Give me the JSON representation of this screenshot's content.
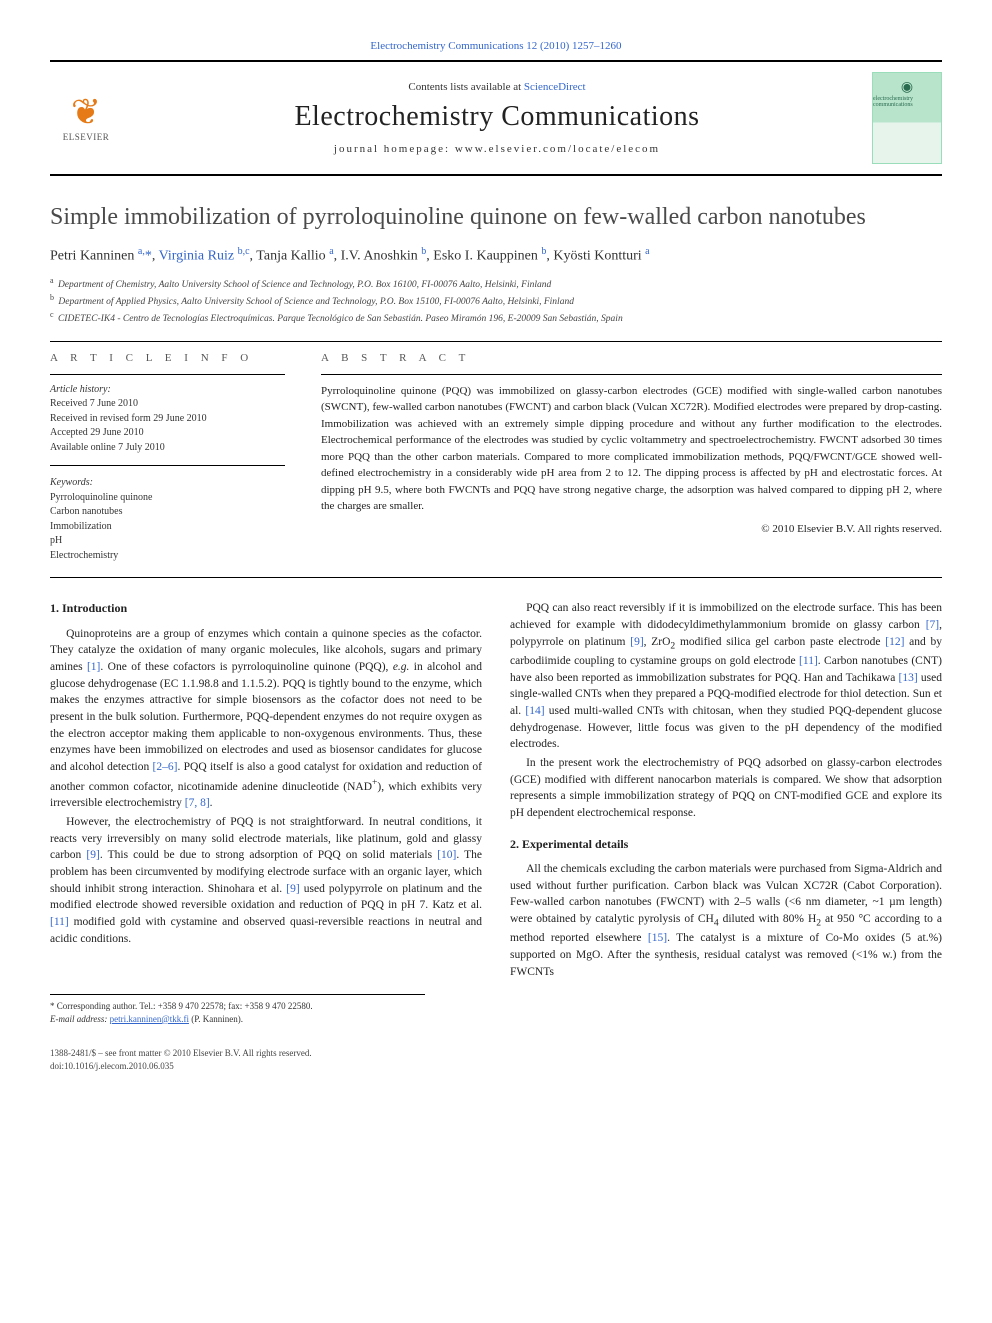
{
  "header": {
    "journal_ref": "Electrochemistry Communications 12 (2010) 1257–1260",
    "contents_prefix": "Contents lists available at ",
    "contents_link": "ScienceDirect",
    "journal_title": "Electrochemistry Communications",
    "homepage_prefix": "journal homepage: ",
    "homepage_url": "www.elsevier.com/locate/elecom",
    "elsevier_label": "ELSEVIER",
    "cover_label": "electrochemistry communications"
  },
  "article": {
    "title": "Simple immobilization of pyrroloquinoline quinone on few-walled carbon nanotubes",
    "authors_html": "Petri Kanninen <sup>a,</sup><span class='star-sup'>*</span>, <a href='#'>Virginia Ruiz</a> <sup>b,c</sup>, Tanja Kallio <sup>a</sup>, I.V. Anoshkin <sup>b</sup>, Esko I. Kauppinen <sup>b</sup>, Kyösti Kontturi <sup>a</sup>",
    "affiliations": [
      {
        "sup": "a",
        "text": "Department of Chemistry, Aalto University School of Science and Technology, P.O. Box 16100, FI-00076 Aalto, Helsinki, Finland"
      },
      {
        "sup": "b",
        "text": "Department of Applied Physics, Aalto University School of Science and Technology, P.O. Box 15100, FI-00076 Aalto, Helsinki, Finland"
      },
      {
        "sup": "c",
        "text": "CIDETEC-IK4 - Centro de Tecnologías Electroquímicas. Parque Tecnológico de San Sebastián. Paseo Miramón 196, E-20009 San Sebastián, Spain"
      }
    ]
  },
  "meta": {
    "info_heading": "A R T I C L E   I N F O",
    "abstract_heading": "A B S T R A C T",
    "history_head": "Article history:",
    "history_lines": [
      "Received 7 June 2010",
      "Received in revised form 29 June 2010",
      "Accepted 29 June 2010",
      "Available online 7 July 2010"
    ],
    "keywords_head": "Keywords:",
    "keywords": [
      "Pyrroloquinoline quinone",
      "Carbon nanotubes",
      "Immobilization",
      "pH",
      "Electrochemistry"
    ],
    "abstract": "Pyrroloquinoline quinone (PQQ) was immobilized on glassy-carbon electrodes (GCE) modified with single-walled carbon nanotubes (SWCNT), few-walled carbon nanotubes (FWCNT) and carbon black (Vulcan XC72R). Modified electrodes were prepared by drop-casting. Immobilization was achieved with an extremely simple dipping procedure and without any further modification to the electrodes. Electrochemical performance of the electrodes was studied by cyclic voltammetry and spectroelectrochemistry. FWCNT adsorbed 30 times more PQQ than the other carbon materials. Compared to more complicated immobilization methods, PQQ/FWCNT/GCE showed well-defined electrochemistry in a considerably wide pH area from 2 to 12. The dipping process is affected by pH and electrostatic forces. At dipping pH 9.5, where both FWCNTs and PQQ have strong negative charge, the adsorption was halved compared to dipping pH 2, where the charges are smaller.",
    "copyright": "© 2010 Elsevier B.V. All rights reserved."
  },
  "body": {
    "sections": [
      {
        "heading": "1. Introduction",
        "paragraphs": [
          "Quinoproteins are a group of enzymes which contain a quinone species as the cofactor. They catalyze the oxidation of many organic molecules, like alcohols, sugars and primary amines <a class='cite' href='#'>[1]</a>. One of these cofactors is pyrroloquinoline quinone (PQQ), <i>e.g.</i> in alcohol and glucose dehydrogenase (EC 1.1.98.8 and 1.1.5.2). PQQ is tightly bound to the enzyme, which makes the enzymes attractive for simple biosensors as the cofactor does not need to be present in the bulk solution. Furthermore, PQQ-dependent enzymes do not require oxygen as the electron acceptor making them applicable to non-oxygenous environments. Thus, these enzymes have been immobilized on electrodes and used as biosensor candidates for glucose and alcohol detection <a class='cite' href='#'>[2–6]</a>. PQQ itself is also a good catalyst for oxidation and reduction of another common cofactor, nicotinamide adenine dinucleotide (NAD<sup>+</sup>), which exhibits very irreversible electrochemistry <a class='cite' href='#'>[7, 8]</a>.",
          "However, the electrochemistry of PQQ is not straightforward. In neutral conditions, it reacts very irreversibly on many solid electrode materials, like platinum, gold and glassy carbon <a class='cite' href='#'>[9]</a>. This could be due to strong adsorption of PQQ on solid materials <a class='cite' href='#'>[10]</a>. The problem has been circumvented by modifying electrode surface with an organic layer, which should inhibit strong interaction. Shinohara et al. <a class='cite' href='#'>[9]</a> used polypyrrole on platinum and the modified electrode showed reversible oxidation and reduction of PQQ in pH 7. Katz et al. <a class='cite' href='#'>[11]</a> modified gold with cystamine and observed quasi-reversible reactions in neutral and acidic conditions.",
          "PQQ can also react reversibly if it is immobilized on the electrode surface. This has been achieved for example with didodecyldimethylammonium bromide on glassy carbon <a class='cite' href='#'>[7]</a>, polypyrrole on platinum <a class='cite' href='#'>[9]</a>, ZrO<sub>2</sub> modified silica gel carbon paste electrode <a class='cite' href='#'>[12]</a> and by carbodiimide coupling to cystamine groups on gold electrode <a class='cite' href='#'>[11]</a>. Carbon nanotubes (CNT) have also been reported as immobilization substrates for PQQ. Han and Tachikawa <a class='cite' href='#'>[13]</a> used single-walled CNTs when they prepared a PQQ-modified electrode for thiol detection. Sun et al. <a class='cite' href='#'>[14]</a> used multi-walled CNTs with chitosan, when they studied PQQ-dependent glucose dehydrogenase. However, little focus was given to the pH dependency of the modified electrodes.",
          "In the present work the electrochemistry of PQQ adsorbed on glassy-carbon electrodes (GCE) modified with different nanocarbon materials is compared. We show that adsorption represents a simple immobilization strategy of PQQ on CNT-modified GCE and explore its pH dependent electrochemical response."
        ]
      },
      {
        "heading": "2. Experimental details",
        "paragraphs": [
          "All the chemicals excluding the carbon materials were purchased from Sigma-Aldrich and used without further purification. Carbon black was Vulcan XC72R (Cabot Corporation). Few-walled carbon nanotubes (FWCNT) with 2–5 walls (&lt;6 nm diameter, ~1 µm length) were obtained by catalytic pyrolysis of CH<sub>4</sub> diluted with 80% H<sub>2</sub> at 950 °C according to a method reported elsewhere <a class='cite' href='#'>[15]</a>. The catalyst is a mixture of Co-Mo oxides (5 at.%) supported on MgO. After the synthesis, residual catalyst was removed (&lt;1% w.) from the FWCNTs"
        ]
      }
    ]
  },
  "footnote": {
    "corr": "* Corresponding author. Tel.: +358 9 470 22578; fax: +358 9 470 22580.",
    "email_label": "E-mail address:",
    "email": "petri.kanninen@tkk.fi",
    "email_person": "(P. Kanninen)."
  },
  "footer": {
    "line1": "1388-2481/$ – see front matter © 2010 Elsevier B.V. All rights reserved.",
    "line2": "doi:10.1016/j.elecom.2010.06.035"
  },
  "colors": {
    "link": "#3366cc",
    "elsevier_orange": "#e67a17",
    "cover_bg": "#b8e4cc"
  }
}
